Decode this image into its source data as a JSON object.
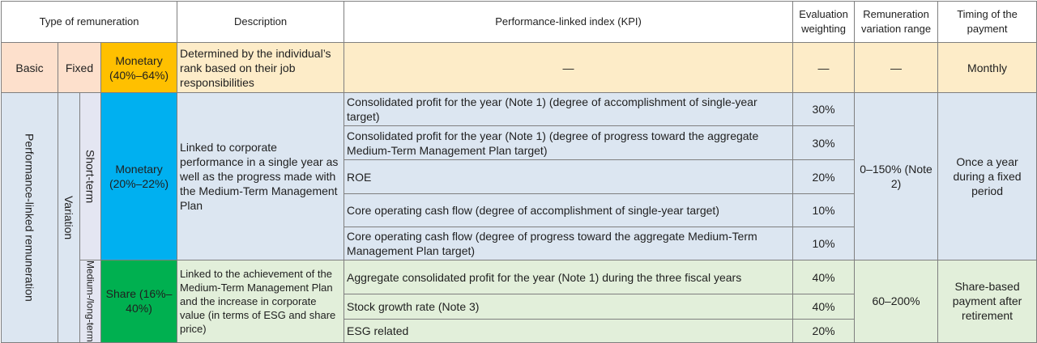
{
  "headers": {
    "type": "Type of remuneration",
    "description": "Description",
    "kpi": "Performance-linked index (KPI)",
    "weight": "Evaluation weighting",
    "range": "Remuneration variation range",
    "timing": "Timing of the payment"
  },
  "basic": {
    "label": "Basic",
    "fixed": "Fixed",
    "monetary": "Monetary (40%–64%)",
    "description": "Determined by the individual’s rank based on their job responsibilities",
    "kpi": "—",
    "weight": "—",
    "range": "—",
    "timing": "Monthly"
  },
  "performance": {
    "label": "Performance-linked remuneration",
    "variation": "Variation",
    "short": {
      "label": "Short-term",
      "monetary": "Monetary (20%–22%)",
      "description": "Linked to corporate performance in a single year as well as the progress made with the Medium-Term Management Plan",
      "rows": [
        {
          "kpi": "Consolidated profit for the year (Note 1) (degree of accomplishment of single-year target)",
          "weight": "30%"
        },
        {
          "kpi": "Consolidated profit for the year (Note 1) (degree of progress toward the aggregate Medium-Term Management Plan target)",
          "weight": "30%"
        },
        {
          "kpi": "ROE",
          "weight": "20%"
        },
        {
          "kpi": "Core operating cash flow (degree of accomplishment of single-year target)",
          "weight": "10%"
        },
        {
          "kpi": "Core operating cash flow (degree of progress toward the aggregate Medium-Term Management Plan target)",
          "weight": "10%"
        }
      ],
      "range": "0–150% (Note 2)",
      "timing": "Once a year during a fixed period"
    },
    "medium": {
      "label": "Medium-/long-term",
      "share": "Share (16%–40%)",
      "description": "Linked to the achievement of the Medium-Term Management Plan and the increase in corporate value (in terms of ESG and share price)",
      "rows": [
        {
          "kpi": "Aggregate consolidated profit for the year (Note 1) during the three fiscal years",
          "weight": "40%"
        },
        {
          "kpi": "Stock growth rate (Note 3)",
          "weight": "40%"
        },
        {
          "kpi": "ESG related",
          "weight": "20%"
        }
      ],
      "range": "60–200%",
      "timing": "Share-based payment after retirement"
    }
  }
}
